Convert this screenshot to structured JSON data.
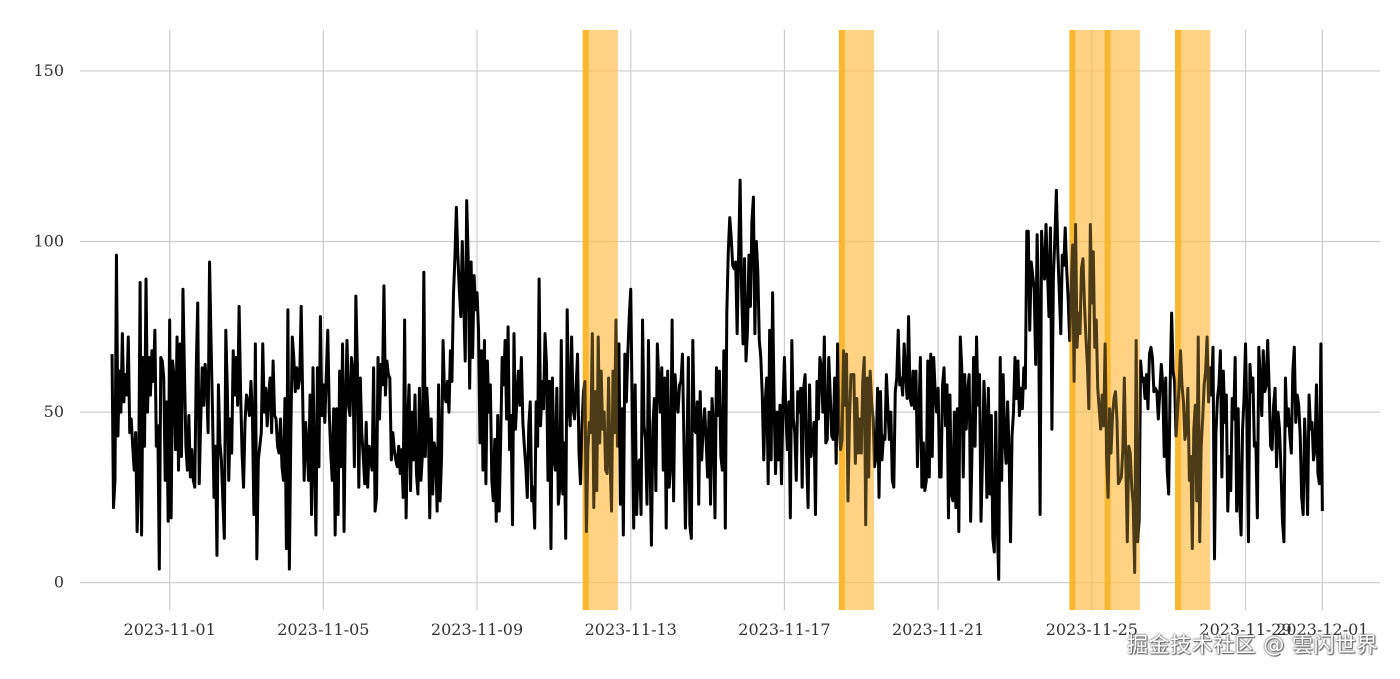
{
  "chart_data": {
    "type": "line",
    "title": "",
    "xlabel": "",
    "ylabel": "",
    "x_start": "2023-10-30T12:00",
    "x_end": "2023-12-01T00:00",
    "points_per_day": 24,
    "xlim": [
      "2023-10-29T16:00",
      "2023-12-02T12:00"
    ],
    "ylim": [
      -8,
      162
    ],
    "yticks": [
      0,
      50,
      100,
      150
    ],
    "xticks": [
      "2023-11-01",
      "2023-11-05",
      "2023-11-09",
      "2023-11-13",
      "2023-11-17",
      "2023-11-21",
      "2023-11-25",
      "2023-11-29",
      "2023-12-01"
    ],
    "grid": true,
    "line_color": "#000000",
    "highlight_color": "#ffc04a",
    "anomaly_windows": [
      {
        "start": "2023-11-11T18:00",
        "end": "2023-11-12T16:00"
      },
      {
        "start": "2023-11-18T10:00",
        "end": "2023-11-19T08:00"
      },
      {
        "start": "2023-11-24T10:00",
        "end": "2023-11-25T08:00"
      },
      {
        "start": "2023-11-25T08:00",
        "end": "2023-11-26T06:00"
      },
      {
        "start": "2023-11-27T04:00",
        "end": "2023-11-28T02:00"
      }
    ],
    "series": [
      {
        "values": [
          67,
          22,
          30,
          96,
          43,
          62,
          50,
          73,
          53,
          61,
          55,
          72,
          44,
          48,
          40,
          33,
          44,
          15,
          30,
          88,
          14,
          66,
          40,
          89,
          50,
          66,
          55,
          68,
          59,
          74,
          40,
          46,
          4,
          66,
          65,
          60,
          30,
          53,
          18,
          77,
          19,
          65,
          60,
          39,
          72,
          33,
          70,
          37,
          86,
          62,
          40,
          33,
          49,
          31,
          39,
          30,
          28,
          63,
          82,
          29,
          47,
          63,
          52,
          64,
          58,
          44,
          94,
          71,
          50,
          25,
          40,
          8,
          58,
          41,
          36,
          24,
          13,
          74,
          57,
          30,
          48,
          38,
          68,
          55,
          66,
          52,
          81,
          56,
          38,
          28,
          47,
          55,
          53,
          49,
          59,
          49,
          20,
          70,
          7,
          36,
          40,
          44,
          70,
          50,
          57,
          46,
          55,
          60,
          44,
          65,
          49,
          48,
          40,
          38,
          48,
          34,
          30,
          54,
          10,
          80,
          4,
          44,
          72,
          66,
          56,
          63,
          57,
          60,
          81,
          55,
          30,
          47,
          40,
          30,
          55,
          20,
          63,
          35,
          14,
          63,
          34,
          78,
          49,
          58,
          47,
          61,
          74,
          50,
          38,
          30,
          51,
          14,
          51,
          20,
          62,
          34,
          70,
          15,
          53,
          71,
          52,
          49,
          66,
          62,
          34,
          84,
          64,
          28,
          60,
          44,
          37,
          29,
          47,
          28,
          40,
          36,
          33,
          63,
          21,
          25,
          66,
          48,
          64,
          58,
          87,
          55,
          65,
          61,
          60,
          36,
          44,
          39,
          36,
          34,
          40,
          32,
          39,
          25,
          77,
          19,
          46,
          58,
          27,
          50,
          36,
          55,
          32,
          26,
          57,
          30,
          37,
          91,
          37,
          57,
          48,
          19,
          48,
          26,
          41,
          38,
          21,
          58,
          24,
          37,
          71,
          55,
          53,
          59,
          50,
          68,
          59,
          84,
          95,
          110,
          96,
          86,
          78,
          100,
          82,
          65,
          112,
          95,
          57,
          94,
          66,
          90,
          80,
          85,
          74,
          41,
          68,
          33,
          71,
          29,
          65,
          50,
          58,
          30,
          24,
          42,
          18,
          49,
          21,
          42,
          66,
          58,
          71,
          48,
          75,
          39,
          49,
          17,
          73,
          45,
          54,
          62,
          52,
          66,
          47,
          40,
          34,
          25,
          46,
          53,
          24,
          28,
          16,
          53,
          40,
          89,
          46,
          59,
          51,
          73,
          64,
          30,
          59,
          10,
          60,
          37,
          33,
          57,
          23,
          28,
          71,
          26,
          41,
          13,
          80,
          53,
          46,
          72,
          51,
          48,
          57,
          67,
          38,
          29,
          46,
          56,
          59,
          15,
          39,
          47,
          44,
          73,
          22,
          56,
          27,
          72,
          41,
          62,
          45,
          50,
          33,
          32,
          60,
          36,
          21,
          62,
          44,
          77,
          40,
          70,
          23,
          51,
          14,
          67,
          53,
          67,
          78,
          86,
          51,
          16,
          58,
          20,
          35,
          36,
          20,
          77,
          46,
          42,
          23,
          71,
          36,
          11,
          46,
          54,
          27,
          70,
          59,
          50,
          63,
          33,
          60,
          16,
          62,
          28,
          34,
          77,
          24,
          61,
          53,
          50,
          58,
          59,
          67,
          41,
          16,
          37,
          66,
          17,
          13,
          71,
          45,
          44,
          53,
          23,
          56,
          36,
          45,
          51,
          42,
          31,
          50,
          23,
          54,
          46,
          19,
          63,
          49,
          62,
          37,
          33,
          68,
          16,
          79,
          97,
          107,
          101,
          93,
          92,
          94,
          73,
          96,
          118,
          86,
          70,
          95,
          65,
          74,
          96,
          81,
          106,
          113,
          73,
          100,
          91,
          71,
          66,
          55,
          36,
          53,
          60,
          29,
          74,
          36,
          85,
          52,
          32,
          50,
          36,
          52,
          29,
          52,
          66,
          49,
          39,
          53,
          19,
          71,
          48,
          44,
          30,
          56,
          50,
          57,
          28,
          57,
          61,
          37,
          22,
          58,
          37,
          41,
          47,
          20,
          59,
          48,
          66,
          63,
          50,
          72,
          41,
          42,
          66,
          55,
          43,
          42,
          60,
          35,
          70,
          46,
          39,
          42,
          68,
          52,
          67,
          24,
          48,
          61,
          61,
          61,
          35,
          54,
          38,
          48,
          38,
          59,
          66,
          17,
          60,
          31,
          62,
          53,
          48,
          34,
          37,
          57,
          25,
          56,
          36,
          43,
          42,
          61,
          51,
          42,
          50,
          30,
          28,
          56,
          60,
          74,
          58,
          60,
          55,
          70,
          61,
          54,
          78,
          54,
          52,
          62,
          51,
          62,
          34,
          50,
          66,
          28,
          41,
          27,
          30,
          65,
          31,
          67,
          37,
          66,
          56,
          50,
          57,
          31,
          31,
          58,
          63,
          46,
          58,
          19,
          55,
          26,
          24,
          50,
          22,
          51,
          15,
          72,
          63,
          31,
          61,
          45,
          56,
          61,
          18,
          40,
          66,
          40,
          72,
          52,
          61,
          18,
          36,
          59,
          48,
          25,
          57,
          26,
          49,
          13,
          9,
          50,
          17,
          1,
          66,
          30,
          61,
          42,
          35,
          53,
          38,
          12,
          43,
          50,
          66,
          54,
          65,
          49,
          57,
          51,
          63,
          57,
          103,
          103,
          74,
          94,
          90,
          86,
          64,
          102,
          78,
          20,
          103,
          93,
          89,
          105,
          91,
          78,
          104,
          45,
          90,
          101,
          115,
          97,
          85,
          73,
          96,
          93,
          104,
          92,
          83,
          71,
          86,
          99,
          59,
          105,
          69,
          79,
          73,
          92,
          95,
          82,
          72,
          64,
          51,
          105,
          82,
          97,
          69,
          77,
          57,
          51,
          45,
          55,
          46,
          70,
          37,
          25,
          51,
          38,
          49,
          54,
          56,
          48,
          29,
          30,
          31,
          39,
          60,
          36,
          12,
          40,
          38,
          28,
          23,
          3,
          71,
          12,
          18,
          65,
          59,
          60,
          54,
          61,
          51,
          67,
          69,
          66,
          56,
          57,
          56,
          48,
          56,
          64,
          58,
          37,
          60,
          33,
          26,
          58,
          79,
          62,
          59,
          43,
          50,
          57,
          68,
          58,
          53,
          42,
          45,
          57,
          30,
          37,
          10,
          45,
          52,
          24,
          72,
          12,
          40,
          48,
          58,
          62,
          72,
          53,
          63,
          55,
          69,
          7,
          44,
          54,
          58,
          68,
          31,
          62,
          47,
          55,
          21,
          37,
          27,
          54,
          48,
          66,
          21,
          51,
          24,
          14,
          45,
          54,
          70,
          47,
          12,
          64,
          56,
          60,
          40,
          41,
          19,
          69,
          59,
          49,
          68,
          56,
          58,
          71,
          57,
          40,
          39,
          52,
          57,
          34,
          50,
          45,
          33,
          18,
          12,
          60,
          46,
          51,
          43,
          38,
          62,
          69,
          47,
          55,
          52,
          43,
          25,
          20,
          48,
          37,
          20,
          55,
          45,
          47,
          36,
          39,
          58,
          32,
          29,
          70,
          21
        ]
      }
    ]
  },
  "watermark": "掘金技术社区 @ 雲闪世界"
}
